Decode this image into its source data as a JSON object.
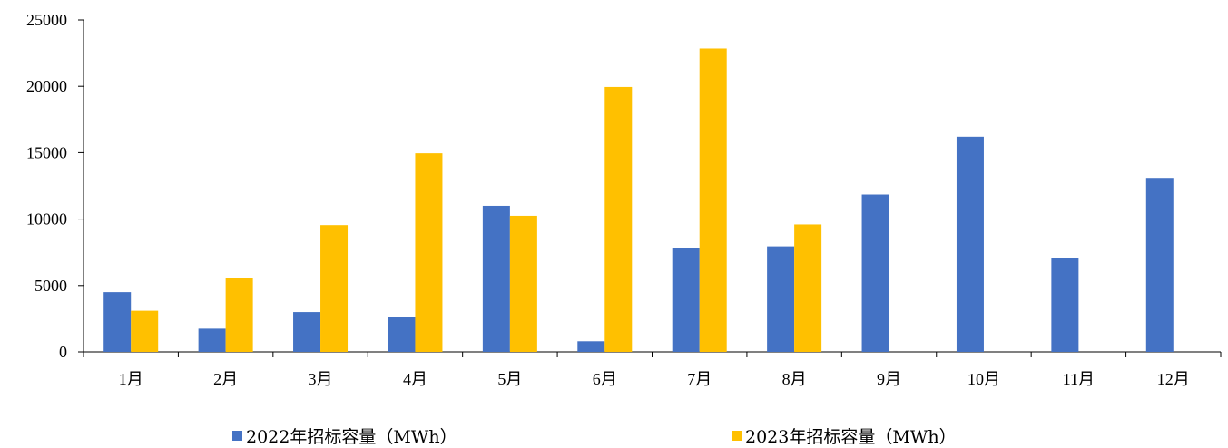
{
  "chart_data": {
    "type": "bar",
    "categories": [
      "1月",
      "2月",
      "3月",
      "4月",
      "5月",
      "6月",
      "7月",
      "8月",
      "9月",
      "10月",
      "11月",
      "12月"
    ],
    "series": [
      {
        "name": "2022年招标容量（MWh）",
        "color": "#4472C4",
        "values": [
          4500,
          1750,
          3000,
          2600,
          11000,
          800,
          7800,
          7950,
          11850,
          16200,
          7100,
          13100
        ]
      },
      {
        "name": "2023年招标容量（MWh）",
        "color": "#FFC000",
        "values": [
          3100,
          5600,
          9550,
          14950,
          10250,
          19950,
          22850,
          9600,
          null,
          null,
          null,
          null
        ]
      }
    ],
    "yticks": [
      "0",
      "5000",
      "10000",
      "15000",
      "20000",
      "25000"
    ],
    "ylim": [
      0,
      25000
    ],
    "grid": false,
    "legend_position": "bottom"
  }
}
